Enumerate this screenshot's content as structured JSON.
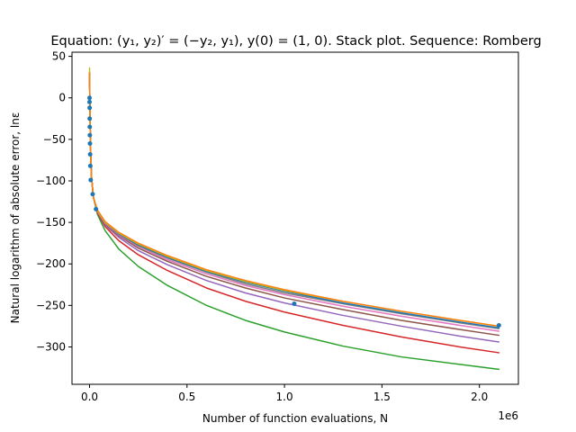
{
  "chart_data": {
    "type": "line",
    "title": "Equation: (y₁, y₂)′ = (−y₂, y₁), y(0) = (1, 0). Stack plot. Sequence: Romberg",
    "xlabel": "Number of function evaluations, N",
    "ylabel": "Natural logarithm of absolute error, lnε",
    "x_scale_label": "1e6",
    "xlim": [
      -90000,
      2200000
    ],
    "ylim": [
      -345,
      55
    ],
    "x_ticks": [
      {
        "value": 0,
        "label": "0.0"
      },
      {
        "value": 500000,
        "label": "0.5"
      },
      {
        "value": 1000000,
        "label": "1.0"
      },
      {
        "value": 1500000,
        "label": "1.5"
      },
      {
        "value": 2000000,
        "label": "2.0"
      }
    ],
    "y_ticks": [
      {
        "value": 50,
        "label": "50"
      },
      {
        "value": 0,
        "label": "0"
      },
      {
        "value": -50,
        "label": "−50"
      },
      {
        "value": -100,
        "label": "−100"
      },
      {
        "value": -150,
        "label": "−150"
      },
      {
        "value": -200,
        "label": "−200"
      },
      {
        "value": -250,
        "label": "−250"
      },
      {
        "value": -300,
        "label": "−300"
      }
    ],
    "grid": false,
    "x": [
      0,
      2000,
      5000,
      10000,
      20000,
      40000,
      80000,
      150000,
      250000,
      400000,
      600000,
      800000,
      1000000,
      1300000,
      1600000,
      1900000,
      2100000
    ],
    "series": [
      {
        "color": "#2ca02c",
        "values": [
          30,
          -10,
          -60,
          -95,
          -120,
          -140,
          -160,
          -182,
          -203,
          -226,
          -250,
          -268,
          -282,
          -299,
          -312,
          -321,
          -327
        ]
      },
      {
        "color": "#d62728",
        "values": [
          30,
          -10,
          -60,
          -95,
          -120,
          -138,
          -155,
          -172,
          -189,
          -208,
          -229,
          -245,
          -258,
          -274,
          -288,
          -300,
          -307
        ]
      },
      {
        "color": "#9467bd",
        "values": [
          30,
          -10,
          -60,
          -95,
          -120,
          -137,
          -153,
          -168,
          -184,
          -201,
          -220,
          -235,
          -247,
          -262,
          -275,
          -287,
          -294
        ]
      },
      {
        "color": "#8c564b",
        "values": [
          30,
          -10,
          -60,
          -95,
          -120,
          -137,
          -152,
          -166,
          -181,
          -197,
          -215,
          -229,
          -241,
          -255,
          -268,
          -279,
          -286
        ]
      },
      {
        "color": "#e377c2",
        "values": [
          30,
          -10,
          -60,
          -95,
          -120,
          -137,
          -151,
          -165,
          -179,
          -195,
          -212,
          -226,
          -237,
          -251,
          -263,
          -274,
          -281
        ]
      },
      {
        "color": "#7f7f7f",
        "values": [
          30,
          -10,
          -60,
          -95,
          -120,
          -136,
          -150,
          -164,
          -178,
          -193,
          -210,
          -224,
          -235,
          -248,
          -260,
          -271,
          -278
        ]
      },
      {
        "color": "#1f77b4",
        "values": [
          30,
          -10,
          -60,
          -95,
          -120,
          -136,
          -150,
          -164,
          -177,
          -192,
          -209,
          -222,
          -233,
          -247,
          -259,
          -270,
          -277
        ]
      },
      {
        "color": "#bcbd22",
        "values": [
          36,
          -10,
          -60,
          -95,
          -120,
          -136,
          -150,
          -163,
          -176,
          -191,
          -208,
          -221,
          -232,
          -245,
          -257,
          -268,
          -275
        ]
      },
      {
        "color": "#ff7f0e",
        "values": [
          30,
          -10,
          -60,
          -95,
          -120,
          -135,
          -149,
          -162,
          -175,
          -190,
          -207,
          -220,
          -231,
          -245,
          -257,
          -268,
          -275
        ]
      }
    ],
    "scatter": {
      "color": "#1f77b4",
      "points": [
        [
          0,
          0
        ],
        [
          0,
          -5
        ],
        [
          500,
          -12
        ],
        [
          700,
          -25
        ],
        [
          1000,
          -35
        ],
        [
          1500,
          -45
        ],
        [
          2000,
          -55
        ],
        [
          3000,
          -68
        ],
        [
          4000,
          -82
        ],
        [
          6000,
          -99
        ],
        [
          16000,
          -116
        ],
        [
          33000,
          -134
        ],
        [
          1050000,
          -248
        ],
        [
          2100000,
          -274
        ]
      ]
    }
  }
}
